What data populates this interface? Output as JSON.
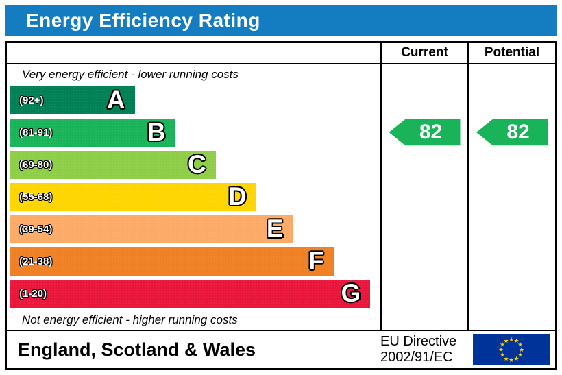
{
  "title": "Energy Efficiency Rating",
  "colors": {
    "title_bar": "#147dc2",
    "border": "#000000"
  },
  "table": {
    "current_header": "Current",
    "potential_header": "Potential"
  },
  "chart_data": {
    "type": "bar",
    "title": "Energy Efficiency Rating",
    "top_note": "Very energy efficient - lower running costs",
    "bottom_note": "Not energy efficient - higher running costs",
    "bands": [
      {
        "letter": "A",
        "range": "(92+)",
        "color": "#008054",
        "width_pct": 34
      },
      {
        "letter": "B",
        "range": "(81-91)",
        "color": "#19b459",
        "width_pct": 45
      },
      {
        "letter": "C",
        "range": "(69-80)",
        "color": "#8dce46",
        "width_pct": 56
      },
      {
        "letter": "D",
        "range": "(55-68)",
        "color": "#ffd500",
        "width_pct": 67
      },
      {
        "letter": "E",
        "range": "(39-54)",
        "color": "#fcaa65",
        "width_pct": 77
      },
      {
        "letter": "F",
        "range": "(21-38)",
        "color": "#ef8023",
        "width_pct": 88
      },
      {
        "letter": "G",
        "range": "(1-20)",
        "color": "#e9153b",
        "width_pct": 98
      }
    ],
    "current": {
      "value": 82,
      "band": "B",
      "band_index": 1,
      "color": "#19b459"
    },
    "potential": {
      "value": 82,
      "band": "B",
      "band_index": 1,
      "color": "#19b459"
    }
  },
  "footer": {
    "region": "England, Scotland & Wales",
    "directive_line1": "EU Directive",
    "directive_line2": "2002/91/EC",
    "flag_colors": {
      "background": "#003399",
      "stars": "#ffcc00"
    }
  }
}
